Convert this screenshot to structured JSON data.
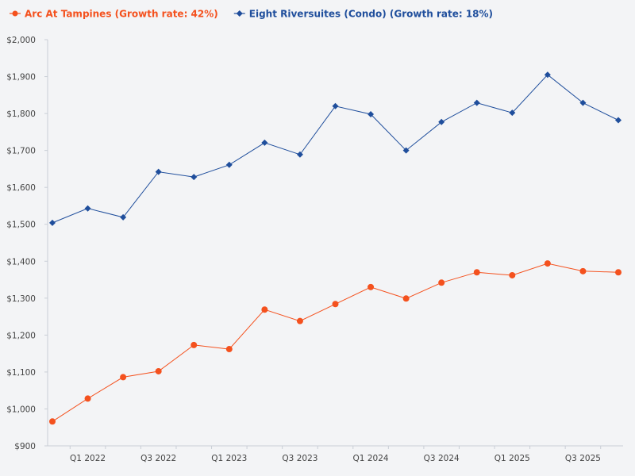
{
  "chart_data": {
    "type": "line",
    "title": "",
    "xlabel": "",
    "ylabel": "",
    "legend_position": "top-left",
    "grid": false,
    "ylim": [
      900,
      2000
    ],
    "y_ticks": [
      "$900",
      "$1,000",
      "$1,100",
      "$1,200",
      "$1,300",
      "$1,400",
      "$1,500",
      "$1,600",
      "$1,700",
      "$1,800",
      "$1,900",
      "$2,000"
    ],
    "y_tick_values": [
      900,
      1000,
      1100,
      1200,
      1300,
      1400,
      1500,
      1600,
      1700,
      1800,
      1900,
      2000
    ],
    "categories": [
      "Q4 2021",
      "Q1 2022",
      "Q2 2022",
      "Q3 2022",
      "Q4 2022",
      "Q1 2023",
      "Q2 2023",
      "Q3 2023",
      "Q4 2023",
      "Q1 2024",
      "Q2 2024",
      "Q3 2024",
      "Q4 2024",
      "Q1 2025",
      "Q2 2025",
      "Q3 2025",
      "Q4 2025"
    ],
    "x_tick_labels": [
      {
        "index": 1,
        "label": "Q1 2022"
      },
      {
        "index": 3,
        "label": "Q3 2022"
      },
      {
        "index": 5,
        "label": "Q1 2023"
      },
      {
        "index": 7,
        "label": "Q3 2023"
      },
      {
        "index": 9,
        "label": "Q1 2024"
      },
      {
        "index": 11,
        "label": "Q3 2024"
      },
      {
        "index": 13,
        "label": "Q1 2025"
      },
      {
        "index": 15,
        "label": "Q3 2025"
      }
    ],
    "series": [
      {
        "name": "Arc At Tampines (Growth rate: 42%)",
        "color": "#f4511e",
        "marker": "circle",
        "values": [
          966,
          1028,
          1086,
          1102,
          1173,
          1162,
          1269,
          1238,
          1284,
          1330,
          1299,
          1342,
          1370,
          1362,
          1394,
          1373,
          1370
        ]
      },
      {
        "name": "Eight Riversuites (Condo) (Growth rate: 18%)",
        "color": "#1f4e9c",
        "marker": "diamond",
        "values": [
          1504,
          1543,
          1519,
          1642,
          1628,
          1661,
          1721,
          1689,
          1820,
          1798,
          1700,
          1777,
          1829,
          1802,
          1905,
          1829,
          1782
        ]
      }
    ]
  }
}
